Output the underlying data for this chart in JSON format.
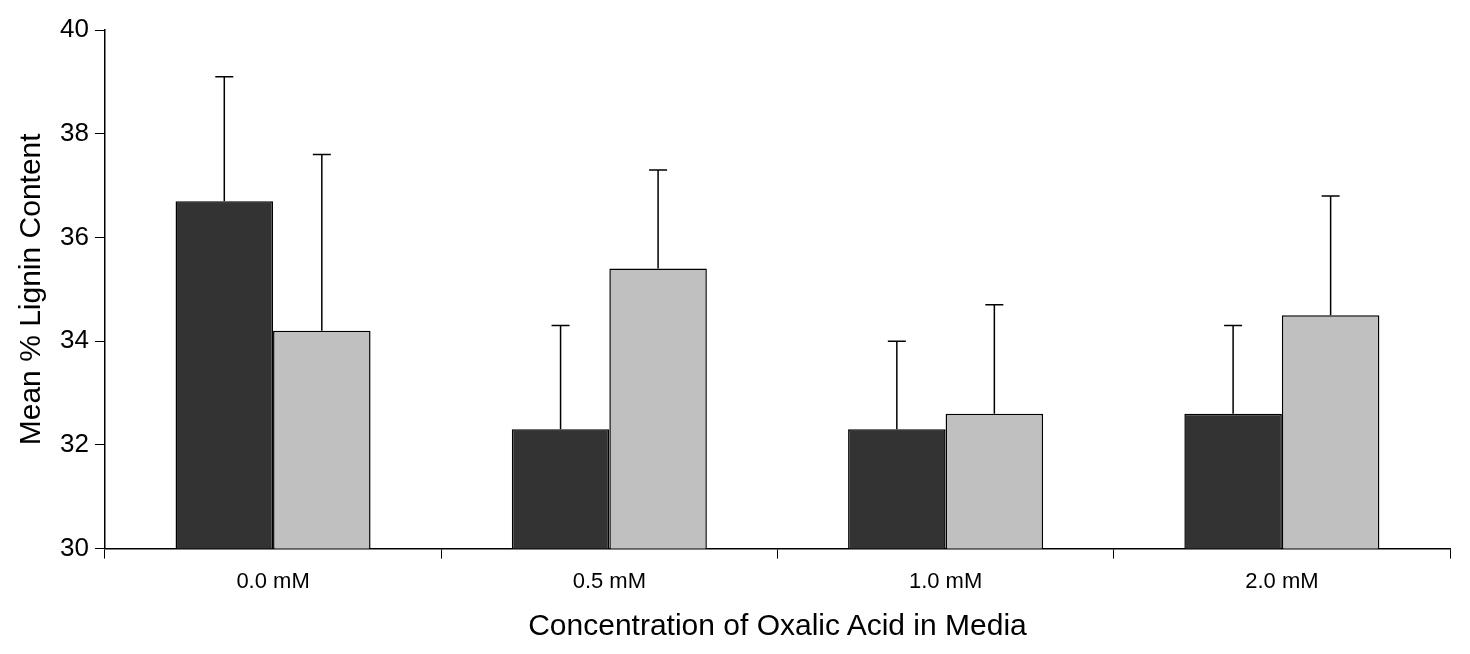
{
  "chart_data": {
    "type": "bar",
    "xlabel": "Concentration of Oxalic Acid in Media",
    "ylabel": "Mean % Lignin Content",
    "categories": [
      "0.0 mM",
      "0.5 mM",
      "1.0 mM",
      "2.0 mM"
    ],
    "series": [
      {
        "color": "#333333",
        "values": [
          36.7,
          32.3,
          32.3,
          32.6
        ],
        "errors": [
          [
            36.7,
            39.1
          ],
          [
            32.3,
            34.3
          ],
          [
            32.3,
            34.0
          ],
          [
            32.6,
            34.3
          ]
        ]
      },
      {
        "color": "#c0c0c0",
        "values": [
          34.2,
          35.4,
          32.6,
          34.5
        ],
        "errors": [
          [
            34.2,
            37.6
          ],
          [
            35.4,
            37.3
          ],
          [
            32.6,
            34.7
          ],
          [
            34.5,
            36.8
          ]
        ]
      }
    ],
    "ylim": [
      30,
      40
    ],
    "yticks": [
      30,
      32,
      34,
      36,
      38,
      40
    ],
    "grid": false,
    "legend": false
  }
}
